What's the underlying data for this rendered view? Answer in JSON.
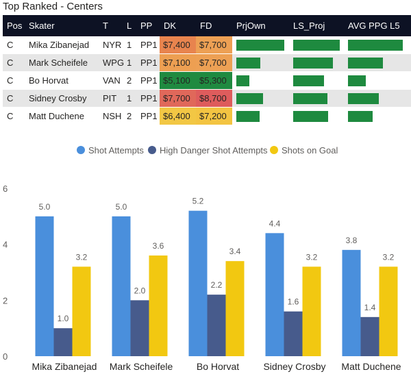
{
  "title": "Top Ranked - Centers",
  "table": {
    "columns": [
      "Pos",
      "Skater",
      "T",
      "L",
      "PP",
      "DK",
      "FD",
      "PrjOwn",
      "LS_Proj",
      "AVG PPG L5"
    ],
    "rows": [
      {
        "pos": "C",
        "skater": "Mika Zibanejad",
        "team": "NYR",
        "line": "1",
        "pp": "PP1",
        "dk": "$7,400",
        "fd": "$7,700",
        "dk_color": "#e8844e",
        "fd_color": "#eda054",
        "prjown": 1.0,
        "ls_proj": 1.0,
        "avg_ppg": 1.0
      },
      {
        "pos": "C",
        "skater": "Mark Scheifele",
        "team": "WPG",
        "line": "1",
        "pp": "PP1",
        "dk": "$7,100",
        "fd": "$7,700",
        "dk_color": "#ed9f52",
        "fd_color": "#eda054",
        "prjown": 0.5,
        "ls_proj": 0.86,
        "avg_ppg": 0.64
      },
      {
        "pos": "C",
        "skater": "Bo Horvat",
        "team": "VAN",
        "line": "2",
        "pp": "PP1",
        "dk": "$5,100",
        "fd": "$5,300",
        "dk_color": "#1f8a40",
        "fd_color": "#1f8a40",
        "prjown": 0.27,
        "ls_proj": 0.66,
        "avg_ppg": 0.32
      },
      {
        "pos": "C",
        "skater": "Sidney Crosby",
        "team": "PIT",
        "line": "1",
        "pp": "PP1",
        "dk": "$7,700",
        "fd": "$8,700",
        "dk_color": "#e0685a",
        "fd_color": "#de5c5c",
        "prjown": 0.56,
        "ls_proj": 0.74,
        "avg_ppg": 0.56
      },
      {
        "pos": "C",
        "skater": "Matt Duchene",
        "team": "NSH",
        "line": "2",
        "pp": "PP1",
        "dk": "$6,400",
        "fd": "$7,200",
        "dk_color": "#f2c744",
        "fd_color": "#f3c442",
        "prjown": 0.49,
        "ls_proj": 0.75,
        "avg_ppg": 0.45
      }
    ]
  },
  "chart_data": {
    "type": "bar",
    "title": "",
    "categories": [
      "Mika Zibanejad",
      "Mark Scheifele",
      "Bo Horvat",
      "Sidney Crosby",
      "Matt Duchene"
    ],
    "series": [
      {
        "name": "Shot Attempts",
        "color": "#4a8fdc",
        "values": [
          5.0,
          5.0,
          5.2,
          4.4,
          3.8
        ]
      },
      {
        "name": "High Danger Shot Attempts",
        "color": "#475b8c",
        "values": [
          1.0,
          2.0,
          2.2,
          1.6,
          1.4
        ]
      },
      {
        "name": "Shots on Goal",
        "color": "#f2c811",
        "values": [
          3.2,
          3.6,
          3.4,
          3.2,
          3.2
        ]
      }
    ],
    "ylim": [
      0,
      6
    ],
    "yticks": [
      0,
      2,
      4,
      6
    ],
    "legend": "top-center",
    "xlabel": "",
    "ylabel": ""
  }
}
